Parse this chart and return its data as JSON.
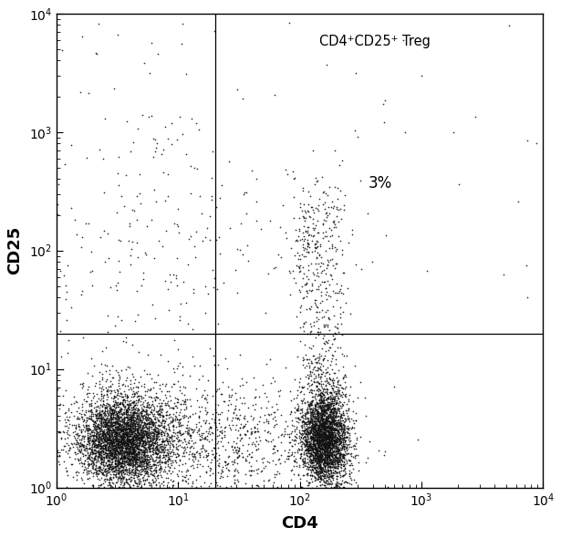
{
  "xlim": [
    1,
    10000
  ],
  "ylim": [
    1,
    10000
  ],
  "xlabel": "CD4",
  "ylabel": "CD25",
  "gate_x": 20,
  "gate_y": 20,
  "annotation_treg": "CD4⁺CD25⁺ Treg",
  "annotation_pct": "3%",
  "bg_color": "#ffffff",
  "dot_color": "#111111",
  "figsize": [
    6.15,
    5.9
  ],
  "dpi": 100
}
